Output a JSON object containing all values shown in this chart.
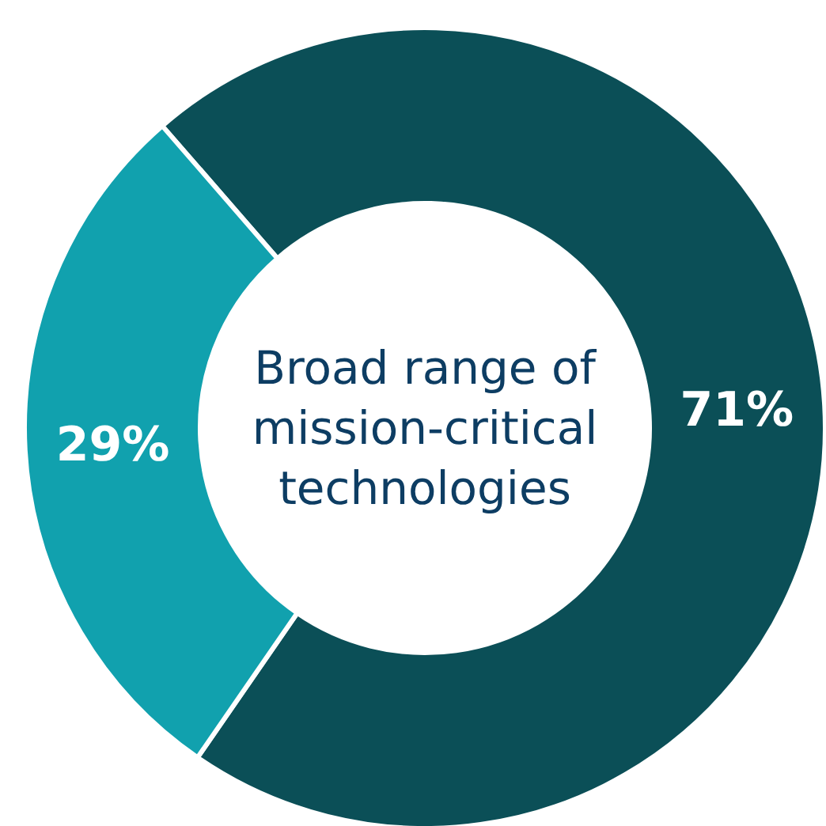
{
  "chart_data": {
    "type": "donut",
    "title": "Broad range of mission-critical technologies",
    "categories": [
      null,
      null
    ],
    "values": [
      71,
      29
    ],
    "colors": [
      "#0b4f57",
      "#11a1ae"
    ],
    "value_labels": [
      "71%",
      "29%"
    ]
  }
}
